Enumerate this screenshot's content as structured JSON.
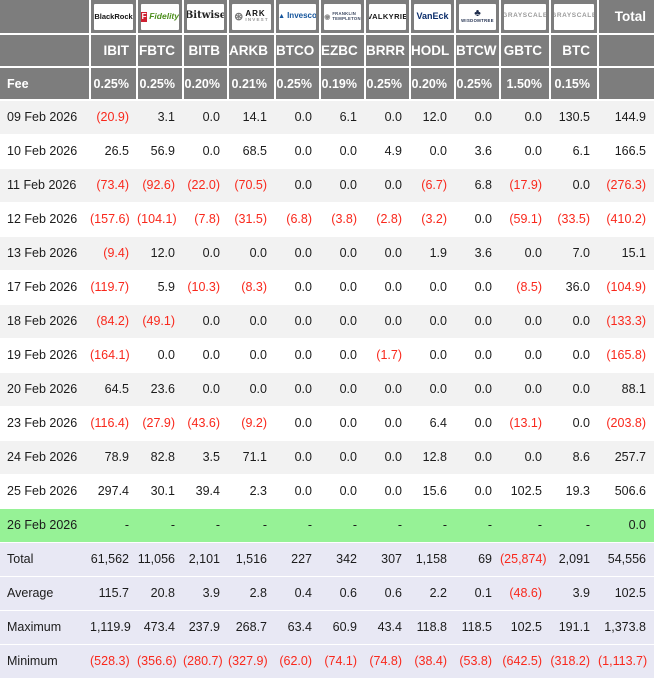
{
  "labels": {
    "fee": "Fee",
    "total": "Total"
  },
  "colors": {
    "header_bg": "#7d7d7d",
    "stripe": "#f2f2f2",
    "highlight_green": "#96f296",
    "summary_bg": "#e8e8f4",
    "negative_red": "#f9281c",
    "text": "#1c1c1c"
  },
  "providers": [
    {
      "id": "blackrock",
      "ticker": "IBIT",
      "fee": "0.25%",
      "logo": {
        "icon": "",
        "lines": [
          "BlackRock"
        ]
      }
    },
    {
      "id": "fidelity",
      "ticker": "FBTC",
      "fee": "0.25%",
      "logo": {
        "icon": "F",
        "lines": [
          "Fidelity"
        ]
      }
    },
    {
      "id": "bitwise",
      "ticker": "BITB",
      "fee": "0.20%",
      "logo": {
        "icon": "",
        "lines": [
          "Bitwise"
        ]
      }
    },
    {
      "id": "ark",
      "ticker": "ARKB",
      "fee": "0.21%",
      "logo": {
        "icon": "⊛",
        "lines": [
          "ARK",
          "INVEST"
        ]
      }
    },
    {
      "id": "invesco",
      "ticker": "BTCO",
      "fee": "0.25%",
      "logo": {
        "icon": "▲",
        "lines": [
          "Invesco"
        ]
      }
    },
    {
      "id": "franklin",
      "ticker": "EZBC",
      "fee": "0.19%",
      "logo": {
        "icon": "◉",
        "lines": [
          "FRANKLIN",
          "TEMPLETON"
        ]
      }
    },
    {
      "id": "valkyrie",
      "ticker": "BRRR",
      "fee": "0.25%",
      "logo": {
        "icon": "",
        "lines": [
          "VALKYRIE"
        ]
      }
    },
    {
      "id": "vaneck",
      "ticker": "HODL",
      "fee": "0.20%",
      "logo": {
        "icon": "",
        "lines": [
          "VanEck"
        ]
      }
    },
    {
      "id": "wisdomtree",
      "ticker": "BTCW",
      "fee": "0.25%",
      "logo": {
        "icon": "♣",
        "lines": [
          "WISDOMTREE"
        ]
      }
    },
    {
      "id": "grayscale-gbtc",
      "ticker": "GBTC",
      "fee": "1.50%",
      "logo": {
        "icon": "",
        "lines": [
          "GRAYSCALE"
        ]
      }
    },
    {
      "id": "grayscale-btc",
      "ticker": "BTC",
      "fee": "0.15%",
      "logo": {
        "icon": "",
        "lines": [
          "GRAYSCALE"
        ]
      }
    }
  ],
  "rows": [
    {
      "type": "data",
      "label": "09 Feb 2026",
      "values": [
        "(20.9)",
        "3.1",
        "0.0",
        "14.1",
        "0.0",
        "6.1",
        "0.0",
        "12.0",
        "0.0",
        "0.0",
        "130.5",
        "144.9"
      ]
    },
    {
      "type": "data",
      "label": "10 Feb 2026",
      "values": [
        "26.5",
        "56.9",
        "0.0",
        "68.5",
        "0.0",
        "0.0",
        "4.9",
        "0.0",
        "3.6",
        "0.0",
        "6.1",
        "166.5"
      ]
    },
    {
      "type": "data",
      "label": "11 Feb 2026",
      "values": [
        "(73.4)",
        "(92.6)",
        "(22.0)",
        "(70.5)",
        "0.0",
        "0.0",
        "0.0",
        "(6.7)",
        "6.8",
        "(17.9)",
        "0.0",
        "(276.3)"
      ]
    },
    {
      "type": "data",
      "label": "12 Feb 2026",
      "values": [
        "(157.6)",
        "(104.1)",
        "(7.8)",
        "(31.5)",
        "(6.8)",
        "(3.8)",
        "(2.8)",
        "(3.2)",
        "0.0",
        "(59.1)",
        "(33.5)",
        "(410.2)"
      ]
    },
    {
      "type": "data",
      "label": "13 Feb 2026",
      "values": [
        "(9.4)",
        "12.0",
        "0.0",
        "0.0",
        "0.0",
        "0.0",
        "0.0",
        "1.9",
        "3.6",
        "0.0",
        "7.0",
        "15.1"
      ]
    },
    {
      "type": "data",
      "label": "17 Feb 2026",
      "values": [
        "(119.7)",
        "5.9",
        "(10.3)",
        "(8.3)",
        "0.0",
        "0.0",
        "0.0",
        "0.0",
        "0.0",
        "(8.5)",
        "36.0",
        "(104.9)"
      ]
    },
    {
      "type": "data",
      "label": "18 Feb 2026",
      "values": [
        "(84.2)",
        "(49.1)",
        "0.0",
        "0.0",
        "0.0",
        "0.0",
        "0.0",
        "0.0",
        "0.0",
        "0.0",
        "0.0",
        "(133.3)"
      ]
    },
    {
      "type": "data",
      "label": "19 Feb 2026",
      "values": [
        "(164.1)",
        "0.0",
        "0.0",
        "0.0",
        "0.0",
        "0.0",
        "(1.7)",
        "0.0",
        "0.0",
        "0.0",
        "0.0",
        "(165.8)"
      ]
    },
    {
      "type": "data",
      "label": "20 Feb 2026",
      "values": [
        "64.5",
        "23.6",
        "0.0",
        "0.0",
        "0.0",
        "0.0",
        "0.0",
        "0.0",
        "0.0",
        "0.0",
        "0.0",
        "88.1"
      ]
    },
    {
      "type": "data",
      "label": "23 Feb 2026",
      "values": [
        "(116.4)",
        "(27.9)",
        "(43.6)",
        "(9.2)",
        "0.0",
        "0.0",
        "0.0",
        "6.4",
        "0.0",
        "(13.1)",
        "0.0",
        "(203.8)"
      ]
    },
    {
      "type": "data",
      "label": "24 Feb 2026",
      "values": [
        "78.9",
        "82.8",
        "3.5",
        "71.1",
        "0.0",
        "0.0",
        "0.0",
        "12.8",
        "0.0",
        "0.0",
        "8.6",
        "257.7"
      ]
    },
    {
      "type": "data",
      "label": "25 Feb 2026",
      "values": [
        "297.4",
        "30.1",
        "39.4",
        "2.3",
        "0.0",
        "0.0",
        "0.0",
        "15.6",
        "0.0",
        "102.5",
        "19.3",
        "506.6"
      ]
    },
    {
      "type": "highlight",
      "label": "26 Feb 2026",
      "values": [
        "-",
        "-",
        "-",
        "-",
        "-",
        "-",
        "-",
        "-",
        "-",
        "-",
        "-",
        "0.0"
      ]
    },
    {
      "type": "summary",
      "label": "Total",
      "values": [
        "61,562",
        "11,056",
        "2,101",
        "1,516",
        "227",
        "342",
        "307",
        "1,158",
        "69",
        "(25,874)",
        "2,091",
        "54,556"
      ]
    },
    {
      "type": "summary",
      "label": "Average",
      "values": [
        "115.7",
        "20.8",
        "3.9",
        "2.8",
        "0.4",
        "0.6",
        "0.6",
        "2.2",
        "0.1",
        "(48.6)",
        "3.9",
        "102.5"
      ]
    },
    {
      "type": "summary",
      "label": "Maximum",
      "values": [
        "1,119.9",
        "473.4",
        "237.9",
        "268.7",
        "63.4",
        "60.9",
        "43.4",
        "118.8",
        "118.5",
        "102.5",
        "191.1",
        "1,373.8"
      ]
    },
    {
      "type": "summary",
      "label": "Minimum",
      "values": [
        "(528.3)",
        "(356.6)",
        "(280.7)",
        "(327.9)",
        "(62.0)",
        "(74.1)",
        "(74.8)",
        "(38.4)",
        "(53.8)",
        "(642.5)",
        "(318.2)",
        "(1,113.7)"
      ]
    }
  ]
}
